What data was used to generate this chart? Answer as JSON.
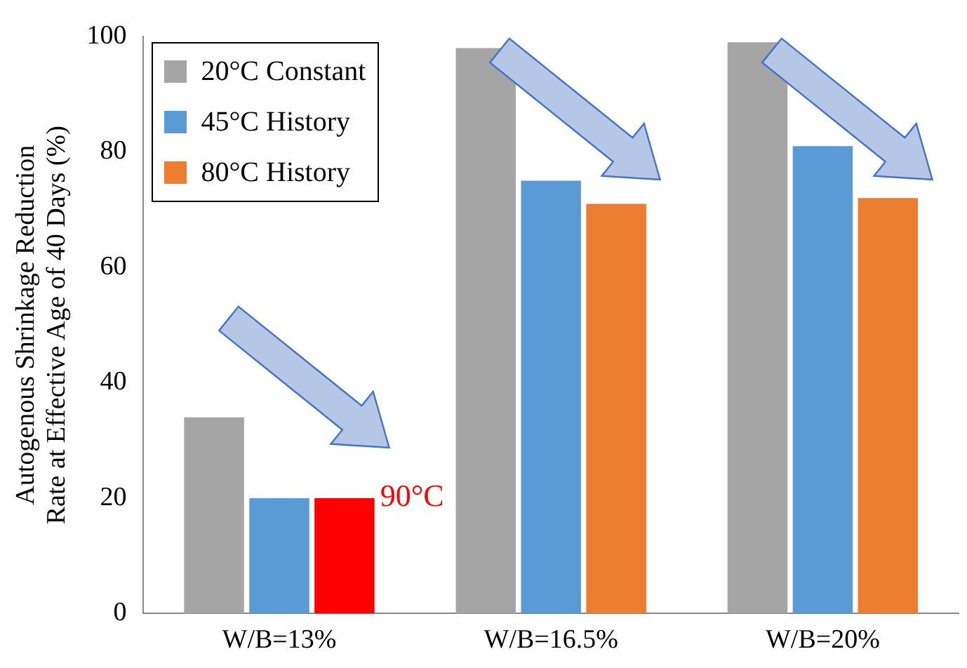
{
  "chart_data": {
    "type": "bar",
    "ylabel": "Autogenous Shrinkage Reduction Rate at Effective Age of 40 Days (%)",
    "categories": [
      "W/B=13%",
      "W/B=16.5%",
      "W/B=20%"
    ],
    "series": [
      {
        "name": "20°C Constant",
        "color": "#a5a5a5",
        "values": [
          34,
          98,
          99
        ]
      },
      {
        "name": "45°C History",
        "color": "#5b9bd5",
        "values": [
          20,
          75,
          81
        ]
      },
      {
        "name": "80°C History",
        "color": "#ed7d31",
        "colors": [
          "#ff0000",
          "#ed7d31",
          "#ed7d31"
        ],
        "values": [
          20,
          71,
          72
        ]
      }
    ],
    "ylim": [
      0,
      100
    ],
    "yticks": [
      0,
      20,
      40,
      60,
      80,
      100
    ],
    "grid": false,
    "legend": "top left",
    "annotations": [
      "90°C"
    ]
  }
}
